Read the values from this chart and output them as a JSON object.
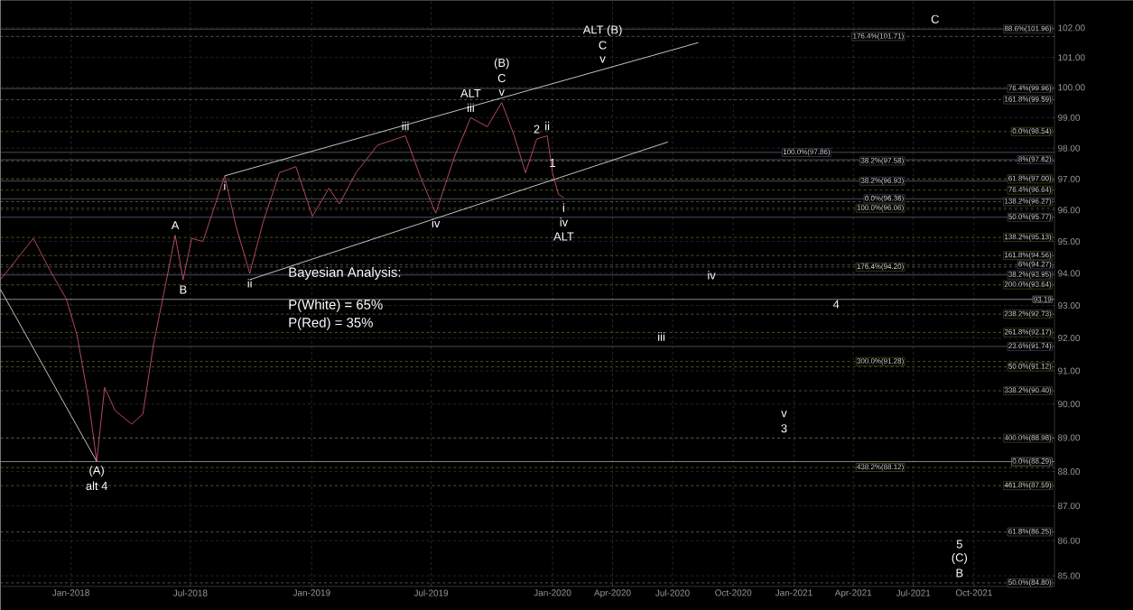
{
  "chart_data": {
    "type": "line",
    "log": "y",
    "grid": true,
    "xlim": [
      "2017-09-16",
      "2022-01-31"
    ],
    "ylim": [
      84.7,
      102.95
    ],
    "xticks": [
      {
        "value": "2018-01-01",
        "label": "Jan-2018"
      },
      {
        "value": "2018-07-01",
        "label": "Jul-2018"
      },
      {
        "value": "2019-01-01",
        "label": "Jan-2019"
      },
      {
        "value": "2019-07-01",
        "label": "Jul-2019"
      },
      {
        "value": "2020-01-01",
        "label": "Jan-2020"
      },
      {
        "value": "2020-04-01",
        "label": "Apr-2020"
      },
      {
        "value": "2020-07-01",
        "label": "Jul-2020"
      },
      {
        "value": "2020-10-01",
        "label": "Oct-2020"
      },
      {
        "value": "2021-01-01",
        "label": "Jan-2021"
      },
      {
        "value": "2021-04-01",
        "label": "Apr-2021"
      },
      {
        "value": "2021-07-01",
        "label": "Jul-2021"
      },
      {
        "value": "2021-10-01",
        "label": "Oct-2021"
      }
    ],
    "yticks": [
      {
        "value": 85,
        "label": "85.00"
      },
      {
        "value": 86,
        "label": "86.00"
      },
      {
        "value": 87,
        "label": "87.00"
      },
      {
        "value": 88,
        "label": "88.00"
      },
      {
        "value": 89,
        "label": "89.00"
      },
      {
        "value": 90,
        "label": "90.00"
      },
      {
        "value": 91,
        "label": "91.00"
      },
      {
        "value": 92,
        "label": "92.00"
      },
      {
        "value": 93,
        "label": "93.00"
      },
      {
        "value": 94,
        "label": "94.00"
      },
      {
        "value": 95,
        "label": "95.00"
      },
      {
        "value": 96,
        "label": "96.00"
      },
      {
        "value": 97,
        "label": "97.00"
      },
      {
        "value": 98,
        "label": "98.00"
      },
      {
        "value": 99,
        "label": "99.00"
      },
      {
        "value": 100,
        "label": "100.00"
      },
      {
        "value": 101,
        "label": "101.00"
      },
      {
        "value": 102,
        "label": "102.00"
      }
    ],
    "series": [
      {
        "color": "#c8506a",
        "x": [
          "2017-09-16",
          "2017-11-05",
          "2017-11-30",
          "2017-12-25",
          "2018-01-10",
          "2018-01-27",
          "2018-02-09",
          "2018-02-21",
          "2018-03-09",
          "2018-04-03",
          "2018-04-20",
          "2018-05-06",
          "2018-05-23",
          "2018-06-08",
          "2018-06-20",
          "2018-07-03",
          "2018-07-20",
          "2018-08-22",
          "2018-09-08",
          "2018-09-29",
          "2018-10-19",
          "2018-11-13",
          "2018-12-08",
          "2019-01-02",
          "2019-01-27",
          "2019-02-12",
          "2019-03-09",
          "2019-04-11",
          "2019-05-23",
          "2019-06-16",
          "2019-07-08",
          "2019-08-05",
          "2019-08-30",
          "2019-09-24",
          "2019-10-16",
          "2019-11-04",
          "2019-11-21",
          "2019-12-08",
          "2019-12-24",
          "2020-01-01",
          "2020-01-10",
          "2020-01-18"
        ],
        "values": [
          93.8,
          95.1,
          94.1,
          93.2,
          92.1,
          90.2,
          88.3,
          90.5,
          89.8,
          89.4,
          89.7,
          91.8,
          93.5,
          95.2,
          93.8,
          95.1,
          95.0,
          97.1,
          95.5,
          94.0,
          95.6,
          97.2,
          97.4,
          95.8,
          96.7,
          96.2,
          97.2,
          98.1,
          98.4,
          97.0,
          95.9,
          97.7,
          99.0,
          98.7,
          99.5,
          98.4,
          97.2,
          98.3,
          98.4,
          97.2,
          96.5,
          96.4
        ]
      },
      {
        "color": "#d8d8d8",
        "x": [
          "2018-08-22",
          "2020-08-09"
        ],
        "values": [
          97.1,
          101.5
        ]
      },
      {
        "color": "#d8d8d8",
        "x": [
          "2018-09-29",
          "2020-06-24"
        ],
        "values": [
          93.8,
          98.2
        ]
      },
      {
        "color": "#d8d8d8",
        "x": [
          "2017-09-16",
          "2018-02-09"
        ],
        "values": [
          93.5,
          88.3
        ]
      }
    ],
    "ref_lines": [
      {
        "axis": "y",
        "value": 101.96,
        "label": "88.6%(101.96)",
        "color": "#7a8296",
        "line_style": "solid"
      },
      {
        "axis": "y",
        "value": 101.71,
        "label": "176.4%(101.71)",
        "color": "#8a8a8a",
        "line_style": "dashed"
      },
      {
        "axis": "y",
        "value": 99.96,
        "label": "76.4%(99.96)",
        "color": "#7a8296",
        "line_style": "solid"
      },
      {
        "axis": "y",
        "value": 99.59,
        "label": "161.8%(99.59)",
        "color": "#8a8a8a",
        "line_style": "dashed"
      },
      {
        "axis": "y",
        "value": 97.62,
        "label": "8%(97.62)",
        "color": "#7a8296",
        "line_style": "solid"
      },
      {
        "axis": "y",
        "value": 96.27,
        "label": "138.2%(96.27)",
        "color": "#8a8a8a",
        "line_style": "dashed"
      },
      {
        "axis": "y",
        "value": 95.77,
        "label": "50.0%(95.77)",
        "color": "#7a8296",
        "line_style": "solid"
      },
      {
        "axis": "y",
        "value": 94.27,
        "label": "6%(94.27)",
        "color": "#7a8296",
        "line_style": "dashed"
      },
      {
        "axis": "y",
        "value": 93.95,
        "label": "38.2%(93.95)",
        "color": "#7a8296",
        "line_style": "solid"
      },
      {
        "axis": "y",
        "value": 93.19,
        "label": "93.19",
        "color": "#e0e0e0",
        "line_style": "solid"
      },
      {
        "axis": "y",
        "value": 91.74,
        "label": "23.6%(91.74)",
        "color": "#7a8296",
        "line_style": "solid"
      },
      {
        "axis": "y",
        "value": 91.12,
        "label": "50.0%(91.12)",
        "color": "#8a8a3a",
        "line_style": "dashed"
      },
      {
        "axis": "y",
        "value": 88.29,
        "label": "0.0%(88.29)",
        "color": "#e0e0e0",
        "line_style": "solid"
      },
      {
        "axis": "y",
        "value": 86.25,
        "label": "61.8%(86.25)",
        "color": "#8a8a8a",
        "line_style": "dashed"
      },
      {
        "axis": "y",
        "value": 84.8,
        "label": "50.0%(84.80)",
        "color": "#8a8a8a",
        "line_style": "dashed"
      },
      {
        "axis": "y",
        "value": 98.54,
        "label": "0.0%(98.54)",
        "color": "#8a8a3a",
        "line_style": "dashed"
      },
      {
        "axis": "y",
        "value": 97.58,
        "label": "38.2%(97.58)",
        "color": "#7a8296",
        "line_style": "dashed"
      },
      {
        "axis": "y",
        "value": 97.0,
        "label": "61.8%(97.00)",
        "color": "#8a8a3a",
        "line_style": "dashed"
      },
      {
        "axis": "y",
        "value": 96.64,
        "label": "76.4%(96.64)",
        "color": "#8a8a3a",
        "line_style": "dashed"
      },
      {
        "axis": "y",
        "value": 96.06,
        "label": "100.0%(96.06)",
        "color": "#8a8a3a",
        "line_style": "dashed"
      },
      {
        "axis": "y",
        "value": 95.13,
        "label": "138.2%(95.13)",
        "color": "#8a8a3a",
        "line_style": "dashed"
      },
      {
        "axis": "y",
        "value": 94.56,
        "label": "161.8%(94.56)",
        "color": "#8a8a3a",
        "line_style": "dashed"
      },
      {
        "axis": "y",
        "value": 94.2,
        "label": "176.4%(94.20)",
        "color": "#8a8a3a",
        "line_style": "dashed"
      },
      {
        "axis": "y",
        "value": 93.64,
        "label": "200.0%(93.64)",
        "color": "#8a8a3a",
        "line_style": "dashed"
      },
      {
        "axis": "y",
        "value": 92.73,
        "label": "238.2%(92.73)",
        "color": "#8a8a3a",
        "line_style": "dashed"
      },
      {
        "axis": "y",
        "value": 92.17,
        "label": "261.8%(92.17)",
        "color": "#8a8a3a",
        "line_style": "dashed"
      },
      {
        "axis": "y",
        "value": 91.28,
        "label": "300.0%(91.28)",
        "color": "#8a8a3a",
        "line_style": "dashed"
      },
      {
        "axis": "y",
        "value": 90.4,
        "label": "338.2%(90.40)",
        "color": "#8a8a3a",
        "line_style": "dashed"
      },
      {
        "axis": "y",
        "value": 88.98,
        "label": "400.0%(88.98)",
        "color": "#8a8a3a",
        "line_style": "dashed"
      },
      {
        "axis": "y",
        "value": 88.12,
        "label": "438.2%(88.12)",
        "color": "#8a8a3a",
        "line_style": "dashed"
      },
      {
        "axis": "y",
        "value": 87.59,
        "label": "461.8%(87.59)",
        "color": "#8a8a3a",
        "line_style": "dashed"
      },
      {
        "axis": "y",
        "value": 97.86,
        "label": "100.0%(97.86)",
        "color": "#7a8296",
        "line_style": "solid"
      },
      {
        "axis": "y",
        "value": 96.93,
        "label": "38.2%(96.93)",
        "color": "#7a8296",
        "line_style": "solid"
      },
      {
        "axis": "y",
        "value": 96.36,
        "label": "0.0%(96.36)",
        "color": "#7a8296",
        "line_style": "solid"
      }
    ],
    "annotations": [
      "Bayesian Analysis:",
      "P(White) = 65%",
      "P(Red) = 35%",
      {
        "text": "v",
        "x": "2019-10-16",
        "y": 99.5
      },
      {
        "text": "C",
        "x": "2019-10-16",
        "y": 99.5
      },
      {
        "text": "(B)",
        "x": "2019-10-16",
        "y": 99.5
      },
      {
        "text": "iii",
        "x": "2019-08-30",
        "y": 99.0
      },
      {
        "text": "ALT",
        "x": "2019-08-30",
        "y": 99.0
      },
      {
        "text": "2",
        "x": "2019-12-08",
        "y": 98.3
      },
      {
        "text": "ii",
        "x": "2019-12-24",
        "y": 98.4
      },
      {
        "text": "1",
        "x": "2020-01-01",
        "y": 97.2
      },
      {
        "text": "i",
        "x": "2020-01-18",
        "y": 96.4
      },
      {
        "text": "iv",
        "x": "2020-01-18",
        "y": 96.4
      },
      {
        "text": "ALT",
        "x": "2020-01-18",
        "y": 96.4
      },
      {
        "text": "A",
        "x": "2018-06-08",
        "y": 95.2
      },
      {
        "text": "B",
        "x": "2018-06-20",
        "y": 93.8
      },
      {
        "text": "i",
        "x": "2018-08-22",
        "y": 97.1
      },
      {
        "text": "ii",
        "x": "2018-09-29",
        "y": 94.0
      },
      {
        "text": "iii",
        "x": "2019-05-23",
        "y": 98.4
      },
      {
        "text": "iv",
        "x": "2019-07-08",
        "y": 95.9
      },
      {
        "text": "(A)",
        "x": "2018-02-09",
        "y": 88.3
      },
      {
        "text": "alt 4",
        "x": "2018-02-09",
        "y": 88.3
      },
      {
        "text": "iv",
        "x": "2020-08-29",
        "y": 93.64
      },
      {
        "text": "iii",
        "x": "2020-06-14",
        "y": 91.74
      },
      {
        "text": "3",
        "x": "2020-12-17",
        "y": 88.98
      },
      {
        "text": "v",
        "x": "2020-12-17",
        "y": 88.98
      },
      {
        "text": "4",
        "x": "2021-03-06",
        "y": 92.73
      },
      {
        "text": "B",
        "x": "2021-09-09",
        "y": 84.8
      },
      {
        "text": "(C)",
        "x": "2021-09-09",
        "y": 84.8
      },
      {
        "text": "5",
        "x": "2021-09-09",
        "y": 84.8
      },
      {
        "text": "C",
        "x": "2021-08-03",
        "y": 101.96
      },
      {
        "text": "v",
        "x": "2020-03-17",
        "y": 100.6
      },
      {
        "text": "C",
        "x": "2020-03-17",
        "y": 100.6
      },
      {
        "text": "ALT (B)",
        "x": "2020-03-17",
        "y": 100.6
      }
    ]
  }
}
